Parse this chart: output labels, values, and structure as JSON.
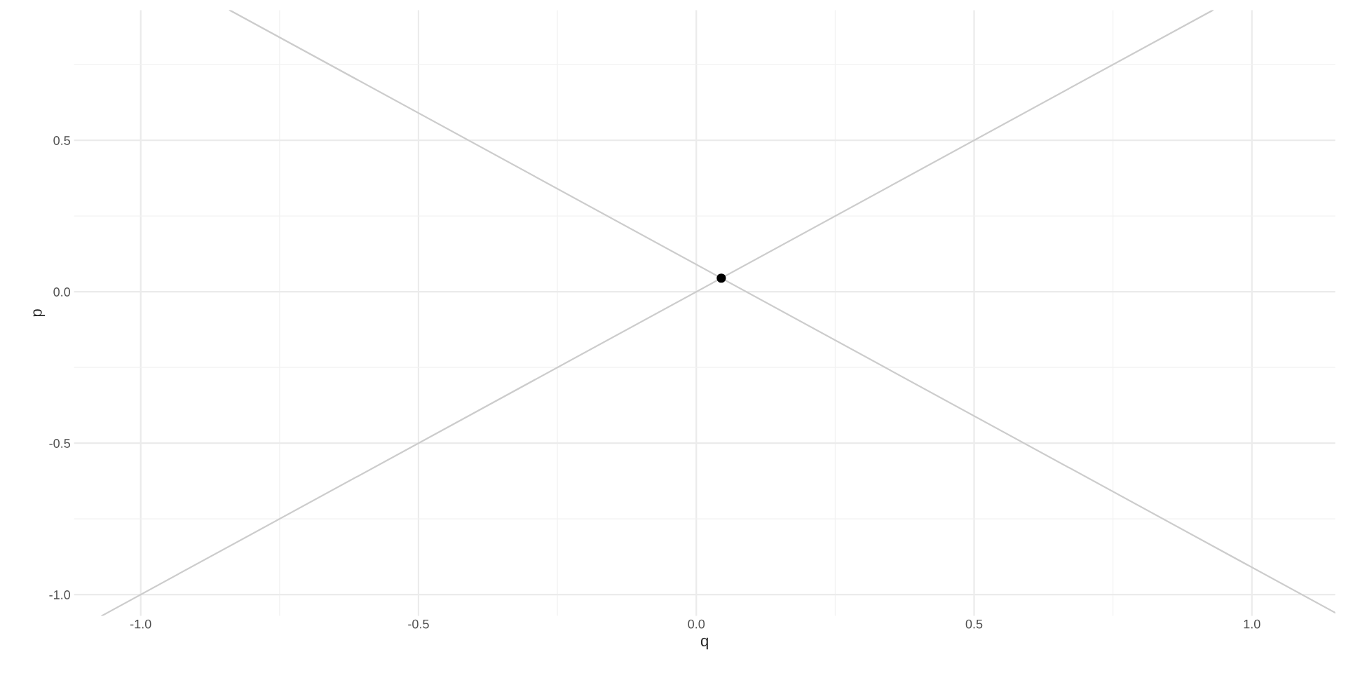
{
  "chart_data": {
    "type": "line",
    "xlabel": "q",
    "ylabel": "p",
    "xlim": [
      -1.12,
      1.15
    ],
    "ylim": [
      -1.07,
      0.93
    ],
    "xticks": [
      {
        "value": -1.0,
        "label": "-1.0"
      },
      {
        "value": -0.5,
        "label": "-0.5"
      },
      {
        "value": 0.0,
        "label": "0.0"
      },
      {
        "value": 0.5,
        "label": "0.5"
      },
      {
        "value": 1.0,
        "label": "1.0"
      }
    ],
    "yticks": [
      {
        "value": -1.0,
        "label": "-1.0"
      },
      {
        "value": -0.5,
        "label": "-0.5"
      },
      {
        "value": 0.0,
        "label": "0.0"
      },
      {
        "value": 0.5,
        "label": "0.5"
      }
    ],
    "grid": true,
    "series": [
      {
        "color": "#cccccc",
        "x": [
          -1.07,
          0.93
        ],
        "values": [
          -1.07,
          0.93
        ]
      },
      {
        "color": "#cccccc",
        "x": [
          -0.84,
          1.15
        ],
        "values": [
          0.93,
          -1.06
        ]
      },
      {
        "type": "scatter",
        "color": "#000000",
        "marker": "circle",
        "x": [
          0.045
        ],
        "values": [
          0.045
        ]
      }
    ]
  }
}
